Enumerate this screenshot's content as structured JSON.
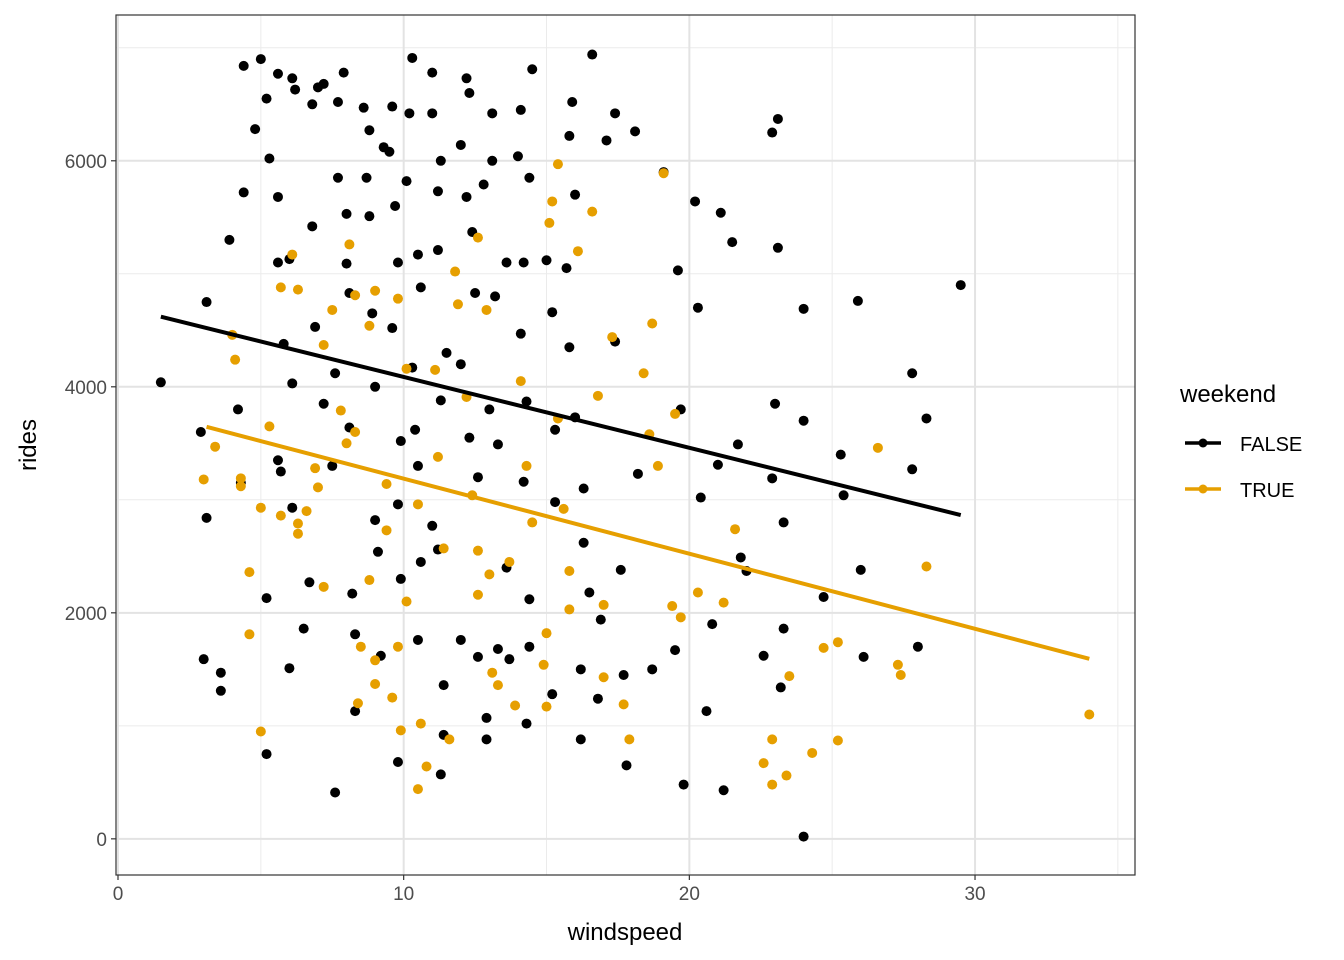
{
  "chart_data": {
    "type": "scatter",
    "xlabel": "windspeed",
    "ylabel": "rides",
    "xlim": [
      -0.07,
      35.6
    ],
    "ylim": [
      -320,
      7290
    ],
    "xticks": [
      0,
      10,
      20,
      30
    ],
    "xtick_labels": [
      "0",
      "10",
      "20",
      "30"
    ],
    "yticks": [
      0,
      2000,
      4000,
      6000
    ],
    "ytick_labels": [
      "0",
      "2000",
      "4000",
      "6000"
    ],
    "grid": true,
    "legend": {
      "title": "weekend",
      "placement": "right",
      "entries": [
        "FALSE",
        "TRUE"
      ]
    },
    "series": [
      {
        "name": "FALSE",
        "color": "#000000",
        "trend_line": {
          "x": [
            1.5,
            29.5
          ],
          "y": [
            4620,
            2865
          ]
        },
        "points": [
          [
            1.5,
            4040
          ],
          [
            3.1,
            4750
          ],
          [
            3.1,
            2840
          ],
          [
            2.9,
            3600
          ],
          [
            3.0,
            1590
          ],
          [
            3.6,
            1470
          ],
          [
            3.6,
            1310
          ],
          [
            4.4,
            6840
          ],
          [
            4.4,
            5720
          ],
          [
            3.9,
            5300
          ],
          [
            4.2,
            3800
          ],
          [
            4.3,
            3150
          ],
          [
            4.8,
            6280
          ],
          [
            5.0,
            6900
          ],
          [
            5.2,
            6550
          ],
          [
            5.3,
            6020
          ],
          [
            5.6,
            6770
          ],
          [
            5.6,
            5680
          ],
          [
            5.6,
            5100
          ],
          [
            5.8,
            4380
          ],
          [
            5.6,
            3350
          ],
          [
            5.7,
            3250
          ],
          [
            5.2,
            2130
          ],
          [
            5.2,
            750
          ],
          [
            6.1,
            6730
          ],
          [
            6.2,
            6630
          ],
          [
            6.0,
            5130
          ],
          [
            6.1,
            4030
          ],
          [
            6.1,
            2930
          ],
          [
            6.0,
            1510
          ],
          [
            6.8,
            6500
          ],
          [
            6.8,
            5420
          ],
          [
            6.9,
            4530
          ],
          [
            6.7,
            2270
          ],
          [
            6.5,
            1860
          ],
          [
            7.0,
            6650
          ],
          [
            7.2,
            6680
          ],
          [
            7.2,
            3850
          ],
          [
            7.5,
            3300
          ],
          [
            7.7,
            6520
          ],
          [
            7.7,
            5850
          ],
          [
            7.6,
            4120
          ],
          [
            7.6,
            410
          ],
          [
            7.9,
            6780
          ],
          [
            8.0,
            5530
          ],
          [
            8.0,
            5090
          ],
          [
            8.1,
            4830
          ],
          [
            8.1,
            3640
          ],
          [
            8.2,
            2170
          ],
          [
            8.3,
            1810
          ],
          [
            8.3,
            1130
          ],
          [
            8.6,
            6470
          ],
          [
            8.8,
            6270
          ],
          [
            8.7,
            5850
          ],
          [
            8.8,
            5510
          ],
          [
            8.9,
            4650
          ],
          [
            9.0,
            4000
          ],
          [
            9.0,
            2820
          ],
          [
            9.1,
            2540
          ],
          [
            9.2,
            1620
          ],
          [
            9.3,
            6120
          ],
          [
            9.6,
            6480
          ],
          [
            9.5,
            6080
          ],
          [
            9.7,
            5600
          ],
          [
            9.8,
            5100
          ],
          [
            9.6,
            4520
          ],
          [
            9.9,
            3520
          ],
          [
            9.8,
            2960
          ],
          [
            9.9,
            2300
          ],
          [
            9.8,
            680
          ],
          [
            10.3,
            6910
          ],
          [
            10.2,
            6420
          ],
          [
            10.1,
            5820
          ],
          [
            10.5,
            5170
          ],
          [
            10.6,
            4880
          ],
          [
            10.3,
            4170
          ],
          [
            10.4,
            3620
          ],
          [
            10.5,
            3300
          ],
          [
            10.6,
            2450
          ],
          [
            10.5,
            1760
          ],
          [
            11.0,
            6420
          ],
          [
            11.0,
            6780
          ],
          [
            11.3,
            6000
          ],
          [
            11.2,
            5730
          ],
          [
            11.2,
            5210
          ],
          [
            11.5,
            4300
          ],
          [
            11.3,
            3880
          ],
          [
            11.0,
            2770
          ],
          [
            11.2,
            2560
          ],
          [
            11.4,
            1360
          ],
          [
            11.4,
            920
          ],
          [
            11.3,
            570
          ],
          [
            12.0,
            6140
          ],
          [
            12.2,
            6730
          ],
          [
            12.3,
            6600
          ],
          [
            12.2,
            5680
          ],
          [
            12.4,
            5370
          ],
          [
            12.5,
            4830
          ],
          [
            12.0,
            4200
          ],
          [
            12.3,
            3550
          ],
          [
            12.6,
            3200
          ],
          [
            12.0,
            1760
          ],
          [
            12.6,
            1610
          ],
          [
            12.9,
            1070
          ],
          [
            12.9,
            880
          ],
          [
            13.1,
            6420
          ],
          [
            13.1,
            6000
          ],
          [
            12.8,
            5790
          ],
          [
            13.6,
            5100
          ],
          [
            13.2,
            4800
          ],
          [
            13.0,
            3800
          ],
          [
            13.3,
            3490
          ],
          [
            13.6,
            2400
          ],
          [
            13.3,
            1680
          ],
          [
            13.7,
            1590
          ],
          [
            14.0,
            6040
          ],
          [
            14.1,
            6450
          ],
          [
            14.5,
            6810
          ],
          [
            14.4,
            5850
          ],
          [
            14.2,
            5100
          ],
          [
            14.1,
            4470
          ],
          [
            14.3,
            3870
          ],
          [
            14.2,
            3160
          ],
          [
            14.4,
            2120
          ],
          [
            14.4,
            1700
          ],
          [
            14.3,
            1020
          ],
          [
            15.0,
            5120
          ],
          [
            15.2,
            4660
          ],
          [
            15.3,
            3620
          ],
          [
            15.3,
            2980
          ],
          [
            15.2,
            1280
          ],
          [
            15.8,
            6220
          ],
          [
            15.9,
            6520
          ],
          [
            16.0,
            5700
          ],
          [
            15.7,
            5050
          ],
          [
            15.8,
            4350
          ],
          [
            16.0,
            3730
          ],
          [
            16.3,
            3100
          ],
          [
            16.3,
            2620
          ],
          [
            16.5,
            2180
          ],
          [
            16.2,
            1500
          ],
          [
            16.2,
            880
          ],
          [
            16.6,
            6940
          ],
          [
            16.9,
            1940
          ],
          [
            16.8,
            1240
          ],
          [
            17.1,
            6180
          ],
          [
            17.4,
            6420
          ],
          [
            17.4,
            4400
          ],
          [
            17.6,
            2380
          ],
          [
            17.7,
            1450
          ],
          [
            17.8,
            650
          ],
          [
            18.1,
            6260
          ],
          [
            18.2,
            3230
          ],
          [
            18.7,
            1500
          ],
          [
            19.1,
            5900
          ],
          [
            19.6,
            5030
          ],
          [
            19.7,
            3800
          ],
          [
            19.5,
            1670
          ],
          [
            19.8,
            480
          ],
          [
            20.2,
            5640
          ],
          [
            20.3,
            4700
          ],
          [
            20.4,
            3020
          ],
          [
            20.6,
            1130
          ],
          [
            20.8,
            1900
          ],
          [
            21.0,
            3310
          ],
          [
            21.1,
            5540
          ],
          [
            21.2,
            430
          ],
          [
            21.5,
            5280
          ],
          [
            21.7,
            3490
          ],
          [
            21.8,
            2490
          ],
          [
            22.0,
            2370
          ],
          [
            22.6,
            1620
          ],
          [
            22.9,
            6250
          ],
          [
            23.1,
            6370
          ],
          [
            23.1,
            5230
          ],
          [
            23.0,
            3850
          ],
          [
            22.9,
            3190
          ],
          [
            23.3,
            2800
          ],
          [
            23.3,
            1860
          ],
          [
            23.2,
            1340
          ],
          [
            24.0,
            4690
          ],
          [
            24.0,
            3700
          ],
          [
            24.0,
            20
          ],
          [
            24.7,
            2140
          ],
          [
            25.3,
            3400
          ],
          [
            25.4,
            3040
          ],
          [
            25.9,
            4760
          ],
          [
            26.0,
            2380
          ],
          [
            26.1,
            1610
          ],
          [
            27.8,
            4120
          ],
          [
            27.8,
            3270
          ],
          [
            28.0,
            1700
          ],
          [
            28.3,
            3720
          ],
          [
            29.5,
            4900
          ]
        ]
      },
      {
        "name": "TRUE",
        "color": "#E69F00",
        "trend_line": {
          "x": [
            3.1,
            34.0
          ],
          "y": [
            3646,
            1593
          ]
        },
        "points": [
          [
            3.0,
            3180
          ],
          [
            3.4,
            3470
          ],
          [
            4.0,
            4460
          ],
          [
            4.1,
            4240
          ],
          [
            4.3,
            3120
          ],
          [
            4.3,
            3190
          ],
          [
            4.6,
            2360
          ],
          [
            4.6,
            1810
          ],
          [
            5.0,
            950
          ],
          [
            5.0,
            2930
          ],
          [
            5.3,
            3650
          ],
          [
            5.7,
            4880
          ],
          [
            5.7,
            2860
          ],
          [
            6.1,
            5170
          ],
          [
            6.3,
            4860
          ],
          [
            6.3,
            2790
          ],
          [
            6.3,
            2700
          ],
          [
            6.6,
            2900
          ],
          [
            6.9,
            3280
          ],
          [
            7.0,
            3110
          ],
          [
            7.2,
            4370
          ],
          [
            7.2,
            2230
          ],
          [
            7.5,
            4680
          ],
          [
            7.8,
            3790
          ],
          [
            8.0,
            3500
          ],
          [
            8.1,
            5260
          ],
          [
            8.3,
            4810
          ],
          [
            8.3,
            3600
          ],
          [
            8.5,
            1700
          ],
          [
            8.4,
            1200
          ],
          [
            8.8,
            4540
          ],
          [
            8.8,
            2290
          ],
          [
            9.0,
            4850
          ],
          [
            9.0,
            1580
          ],
          [
            9.0,
            1370
          ],
          [
            9.4,
            3140
          ],
          [
            9.4,
            2730
          ],
          [
            9.6,
            1250
          ],
          [
            9.8,
            4780
          ],
          [
            9.8,
            1700
          ],
          [
            9.9,
            960
          ],
          [
            10.1,
            4160
          ],
          [
            10.1,
            2100
          ],
          [
            10.5,
            2960
          ],
          [
            10.6,
            1020
          ],
          [
            10.8,
            640
          ],
          [
            10.5,
            440
          ],
          [
            11.1,
            4150
          ],
          [
            11.2,
            3380
          ],
          [
            11.4,
            2570
          ],
          [
            11.6,
            880
          ],
          [
            11.8,
            5020
          ],
          [
            11.9,
            4730
          ],
          [
            12.2,
            3910
          ],
          [
            12.4,
            3040
          ],
          [
            12.6,
            2550
          ],
          [
            12.6,
            2160
          ],
          [
            12.9,
            4680
          ],
          [
            12.6,
            5320
          ],
          [
            13.0,
            2340
          ],
          [
            13.1,
            1470
          ],
          [
            13.3,
            1360
          ],
          [
            13.7,
            2450
          ],
          [
            13.9,
            1180
          ],
          [
            14.1,
            4050
          ],
          [
            14.3,
            3300
          ],
          [
            14.5,
            2800
          ],
          [
            14.9,
            1540
          ],
          [
            15.0,
            1820
          ],
          [
            15.0,
            1170
          ],
          [
            15.1,
            5450
          ],
          [
            15.2,
            5640
          ],
          [
            15.4,
            5970
          ],
          [
            15.4,
            3720
          ],
          [
            15.6,
            2920
          ],
          [
            15.8,
            2370
          ],
          [
            15.8,
            2030
          ],
          [
            16.1,
            5200
          ],
          [
            16.6,
            5550
          ],
          [
            16.8,
            3920
          ],
          [
            17.0,
            1430
          ],
          [
            17.0,
            2070
          ],
          [
            17.3,
            4440
          ],
          [
            17.7,
            1190
          ],
          [
            17.9,
            880
          ],
          [
            18.4,
            4120
          ],
          [
            18.6,
            3580
          ],
          [
            18.7,
            4560
          ],
          [
            18.9,
            3300
          ],
          [
            19.1,
            5890
          ],
          [
            19.5,
            3760
          ],
          [
            19.4,
            2060
          ],
          [
            19.7,
            1960
          ],
          [
            20.3,
            2180
          ],
          [
            21.2,
            2090
          ],
          [
            21.6,
            2740
          ],
          [
            22.6,
            670
          ],
          [
            22.9,
            480
          ],
          [
            22.9,
            880
          ],
          [
            23.4,
            560
          ],
          [
            23.5,
            1440
          ],
          [
            24.3,
            760
          ],
          [
            24.7,
            1690
          ],
          [
            25.2,
            870
          ],
          [
            25.2,
            1740
          ],
          [
            26.6,
            3460
          ],
          [
            27.3,
            1540
          ],
          [
            27.4,
            1450
          ],
          [
            28.3,
            2410
          ],
          [
            34.0,
            1100
          ]
        ]
      }
    ]
  }
}
